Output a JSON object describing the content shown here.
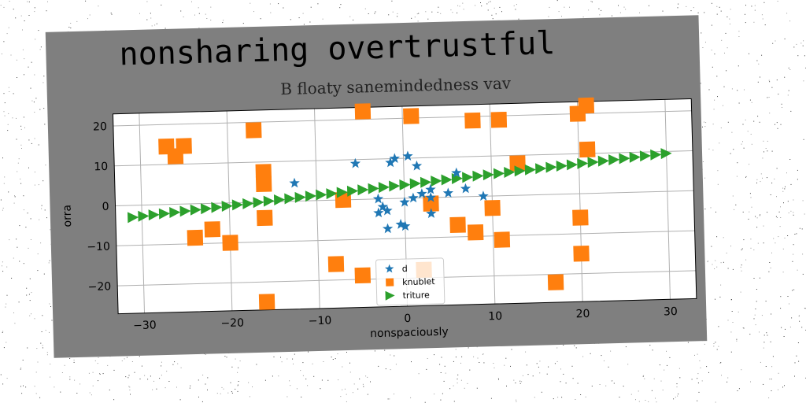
{
  "colors": {
    "card": "#7f7f7f",
    "plot_bg": "#ffffff",
    "grid": "#b0b0b0",
    "series_d": "#1f77b4",
    "series_knublet": "#ff7f0e",
    "series_triture": "#2ca02c"
  },
  "chart_data": {
    "type": "scatter",
    "title": "nonsharing overtrustful",
    "subtitle": "B floaty sanemindedness vav",
    "xlabel": "nonspaciously",
    "ylabel": "orra",
    "xlim": [
      -33,
      33
    ],
    "ylim": [
      -27,
      23
    ],
    "xticks": [
      -30,
      -20,
      -10,
      0,
      10,
      20,
      30
    ],
    "yticks": [
      -20,
      -10,
      0,
      10,
      20
    ],
    "xtick_labels": [
      "−30",
      "−20",
      "−10",
      "0",
      "10",
      "20",
      "30"
    ],
    "ytick_labels": [
      "−20",
      "−10",
      "0",
      "10",
      "20"
    ],
    "grid": true,
    "legend_position": "lower-center",
    "series": [
      {
        "name": "d",
        "marker": "star",
        "color": "#1f77b4",
        "points": [
          [
            -12.5,
            4.5
          ],
          [
            -5.5,
            9
          ],
          [
            -1.5,
            9
          ],
          [
            -1,
            10
          ],
          [
            0.5,
            10.5
          ],
          [
            1.5,
            8
          ],
          [
            -3,
            0
          ],
          [
            -2.5,
            -2
          ],
          [
            -3,
            -3.5
          ],
          [
            -2,
            -3
          ],
          [
            -2,
            -7.5
          ],
          [
            -0.5,
            -6.5
          ],
          [
            0,
            -7
          ],
          [
            0,
            -1
          ],
          [
            1,
            0
          ],
          [
            2,
            1
          ],
          [
            3,
            2
          ],
          [
            3,
            0
          ],
          [
            3,
            -4
          ],
          [
            5,
            1
          ],
          [
            6,
            6
          ],
          [
            7,
            2
          ],
          [
            9,
            0
          ]
        ]
      },
      {
        "name": "knublet",
        "marker": "square",
        "color": "#ff7f0e",
        "points": [
          [
            -27,
            14.5
          ],
          [
            -25,
            14.5
          ],
          [
            -26,
            12
          ],
          [
            -17,
            18
          ],
          [
            -16,
            7.5
          ],
          [
            -16,
            4.5
          ],
          [
            -16,
            -4
          ],
          [
            -24,
            -8.5
          ],
          [
            -22,
            -6.5
          ],
          [
            -20,
            -10
          ],
          [
            -16,
            -25
          ],
          [
            -8,
            -16
          ],
          [
            -7,
            0
          ],
          [
            -5,
            -19
          ],
          [
            -4.5,
            22
          ],
          [
            1,
            20.5
          ],
          [
            2,
            -18
          ],
          [
            3,
            -1.5
          ],
          [
            6,
            -7
          ],
          [
            8,
            -9
          ],
          [
            8,
            19
          ],
          [
            11,
            19
          ],
          [
            11,
            -11
          ],
          [
            10,
            -3
          ],
          [
            13,
            8
          ],
          [
            17,
            -22
          ],
          [
            20,
            20
          ],
          [
            21,
            22
          ],
          [
            21,
            11
          ],
          [
            20,
            -6
          ],
          [
            20,
            -15
          ]
        ]
      },
      {
        "name": "triture",
        "marker": "triangle-right",
        "color": "#2ca02c",
        "line": {
          "x_start": -31,
          "x_end": 30,
          "y_start": -3,
          "y_end": 9.5,
          "count": 52
        }
      }
    ]
  }
}
